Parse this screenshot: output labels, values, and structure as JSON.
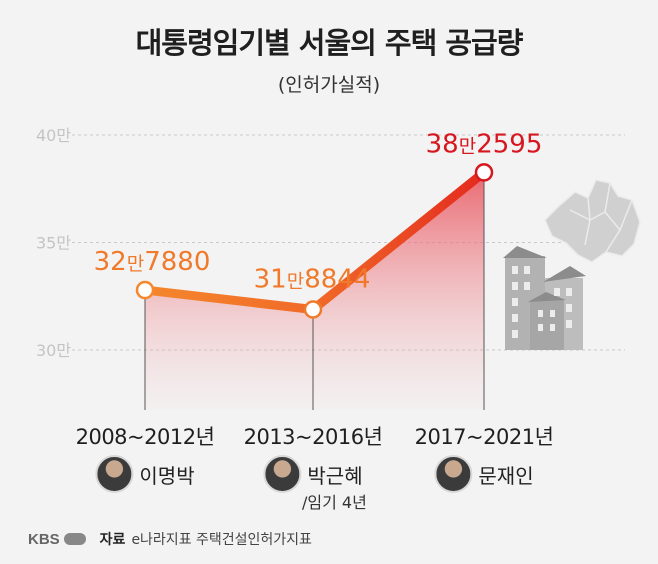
{
  "header": {
    "title": "대통령임기별 서울의 주택 공급량",
    "subtitle": "(인허가실적)"
  },
  "chart_data": {
    "type": "line",
    "title": "대통령임기별 서울의 주택 공급량",
    "subtitle": "(인허가실적)",
    "categories": [
      "2008~2012년",
      "2013~2016년",
      "2017~2021년"
    ],
    "series": [
      {
        "values": [
          327880,
          318844,
          382595
        ],
        "labels": [
          "32만7880",
          "31만8844",
          "38만2595"
        ],
        "color": "#f0682a"
      }
    ],
    "y_ticks": [
      {
        "value": 300000,
        "label": "30만"
      },
      {
        "value": 350000,
        "label": "35만"
      },
      {
        "value": 400000,
        "label": "40만"
      }
    ],
    "ylim": [
      300000,
      400000
    ],
    "grid": true,
    "highlight_color": "#d7171f"
  },
  "presidents": [
    {
      "name": "이명박",
      "icon": "portrait-icon"
    },
    {
      "name": "박근혜",
      "icon": "portrait-icon",
      "note": "/임기 4년"
    },
    {
      "name": "문재인",
      "icon": "portrait-icon"
    }
  ],
  "footer": {
    "logo": "KBS",
    "source_label": "자료",
    "source": "e나라지표 주택건설인허가지표"
  }
}
